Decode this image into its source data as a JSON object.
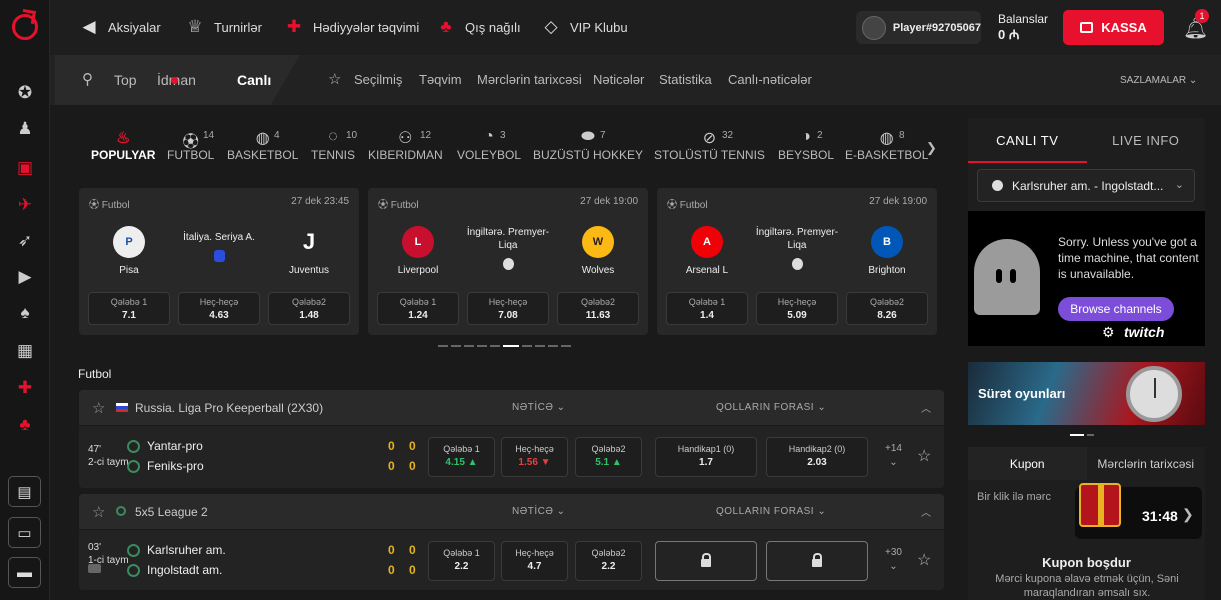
{
  "nav": {
    "items": [
      "Aksiyalar",
      "Turnirlər",
      "Hədiyyələr təqvimi",
      "Qış nağılı",
      "VIP Klubu"
    ],
    "player": "Player#92705067",
    "balance_label": "Balanslar",
    "balance_value": "0 ₼",
    "kassa": "KASSA",
    "notif_count": "1"
  },
  "subnav": {
    "search": "Top",
    "sport": "İdman",
    "live": "Canlı",
    "items": [
      "Seçilmiş",
      "Təqvim",
      "Mərclərin tarixcəsi",
      "Nəticələr",
      "Statistika",
      "Canlı-nəticələr"
    ],
    "settings": "SAZLAMALAR"
  },
  "sports": [
    {
      "label": "POPULYAR",
      "count": ""
    },
    {
      "label": "FUTBOL",
      "count": "14"
    },
    {
      "label": "BASKETBOL",
      "count": "4"
    },
    {
      "label": "TENNIS",
      "count": "10"
    },
    {
      "label": "KIBERIDMAN",
      "count": "12"
    },
    {
      "label": "VOLEYBOL",
      "count": "3"
    },
    {
      "label": "BUZÜSTÜ HOKKEY",
      "count": "7"
    },
    {
      "label": "STOLÜSTÜ TENNIS",
      "count": "32"
    },
    {
      "label": "BEYSBOL",
      "count": "2"
    },
    {
      "label": "E-BASKETBOL",
      "count": "8"
    }
  ],
  "featured": [
    {
      "sport": "Futbol",
      "date": "27 dek 23:45",
      "league": "İtaliya. Seriya A.",
      "home": "Pisa",
      "away": "Juventus",
      "odds": [
        {
          "label": "Qələbə 1",
          "value": "7.1"
        },
        {
          "label": "Heç-heçə",
          "value": "4.63"
        },
        {
          "label": "Qələbə2",
          "value": "1.48"
        }
      ]
    },
    {
      "sport": "Futbol",
      "date": "27 dek 19:00",
      "league": "İngiltərə. Premyer-Liqa",
      "home": "Liverpool",
      "away": "Wolves",
      "odds": [
        {
          "label": "Qələbə 1",
          "value": "1.24"
        },
        {
          "label": "Heç-heçə",
          "value": "7.08"
        },
        {
          "label": "Qələbə2",
          "value": "11.63"
        }
      ]
    },
    {
      "sport": "Futbol",
      "date": "27 dek 19:00",
      "league": "İngiltərə. Premyer-Liqa",
      "home": "Arsenal L",
      "away": "Brighton",
      "odds": [
        {
          "label": "Qələbə 1",
          "value": "1.4"
        },
        {
          "label": "Heç-heçə",
          "value": "5.09"
        },
        {
          "label": "Qələbə2",
          "value": "8.26"
        }
      ]
    }
  ],
  "section_title": "Futbol",
  "col_result": "NƏTİCƏ",
  "col_handicap": "QOLLARIN FORASI",
  "events": [
    {
      "league": "Russia. Liga Pro Keeperball (2X30)",
      "minute": "47'",
      "period": "2-ci taym",
      "home": "Yantar-pro",
      "away": "Feniks-pro",
      "home_score": "0",
      "home_score2": "0",
      "away_score": "0",
      "away_score2": "0",
      "odds": [
        {
          "label": "Qələbə 1",
          "value": "4.15 ▲"
        },
        {
          "label": "Heç-heçə",
          "value": "1.56 ▼"
        },
        {
          "label": "Qələbə2",
          "value": "5.1 ▲"
        }
      ],
      "handicap": [
        {
          "label": "Handikap1 (0)",
          "value": "1.7"
        },
        {
          "label": "Handikap2 (0)",
          "value": "2.03"
        }
      ],
      "more": "+14"
    },
    {
      "league": "5x5 League 2",
      "minute": "03'",
      "period": "1-ci taym",
      "home": "Karlsruher am.",
      "away": "Ingolstadt am.",
      "home_score": "0",
      "home_score2": "0",
      "away_score": "0",
      "away_score2": "0",
      "odds": [
        {
          "label": "Qələbə 1",
          "value": "2.2"
        },
        {
          "label": "Heç-heçə",
          "value": "4.7"
        },
        {
          "label": "Qələbə2",
          "value": "2.2"
        }
      ],
      "more": "+30"
    }
  ],
  "right": {
    "tab_tv": "CANLI TV",
    "tab_info": "LIVE INFO",
    "channel": "Karlsruher am. - Ingolstadt...",
    "video_msg": "Sorry. Unless you've got a time machine, that content is unavailable.",
    "browse": "Browse channels",
    "twitch": "twitch",
    "banner": "Sürət oyunları",
    "tab_coupon": "Kupon",
    "tab_history": "Mərclərin tarixcəsi",
    "one_click": "Bir klik ilə mərc",
    "timer": "31:48",
    "coupon_title": "Kupon boşdur",
    "coupon_desc": "Mərci kupona əlavə etmək üçün, Səni maraqlandıran əmsalı sıx."
  }
}
